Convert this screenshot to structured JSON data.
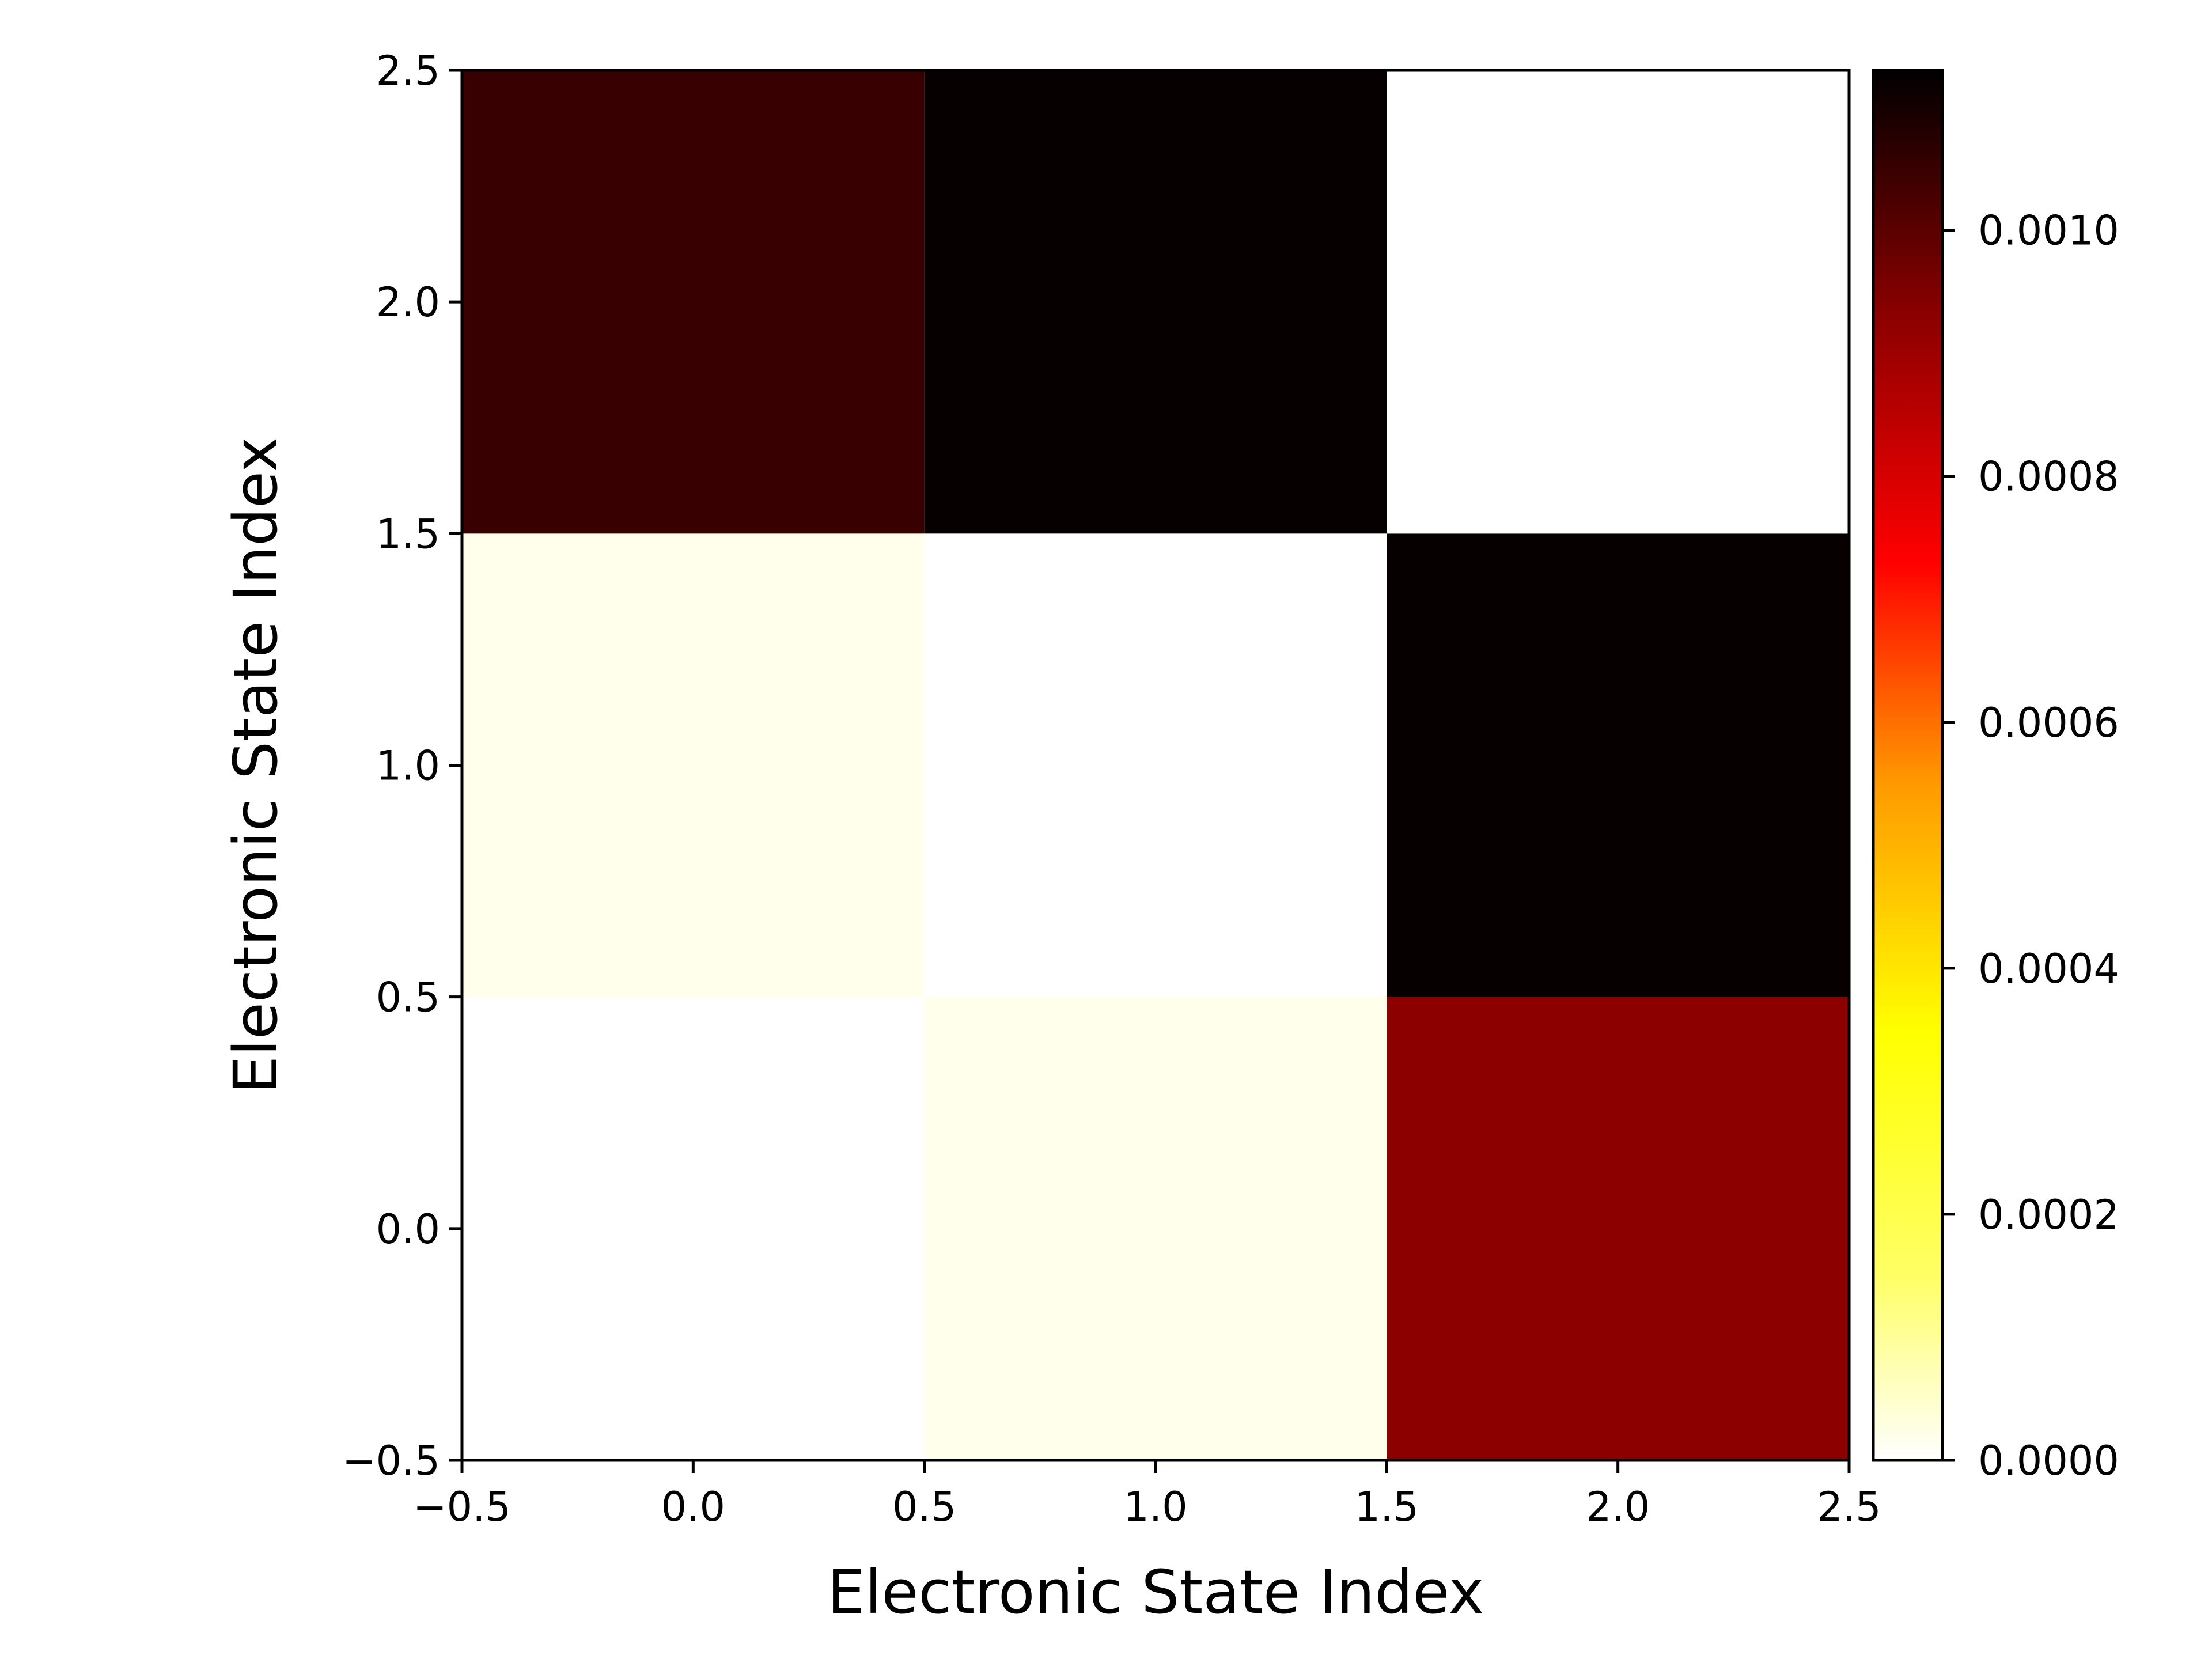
{
  "chart_data": {
    "type": "heatmap",
    "xlabel": "Electronic State Index",
    "ylabel": "Electronic State Index",
    "x_centers": [
      0,
      1,
      2
    ],
    "y_centers": [
      0,
      1,
      2
    ],
    "xlim": [
      -0.5,
      2.5
    ],
    "ylim": [
      -0.5,
      2.5
    ],
    "x_ticks": [
      -0.5,
      0.0,
      0.5,
      1.0,
      1.5,
      2.0,
      2.5
    ],
    "x_tick_labels": [
      "−0.5",
      "0.0",
      "0.5",
      "1.0",
      "1.5",
      "2.0",
      "2.5"
    ],
    "y_ticks": [
      -0.5,
      0.0,
      0.5,
      1.0,
      1.5,
      2.0,
      2.5
    ],
    "y_tick_labels": [
      "−0.5",
      "0.0",
      "0.5",
      "1.0",
      "1.5",
      "2.0",
      "2.5"
    ],
    "values": [
      [
        0.0,
        2e-05,
        0.00093
      ],
      [
        2e-05,
        0.0,
        0.00112
      ],
      [
        0.00105,
        0.00112,
        0.0
      ]
    ],
    "value_note_rows": "values[row][col], row = y index (0 at bottom), col = x index",
    "colormap": "hot_r",
    "colorbar": {
      "range": [
        0.0,
        0.00113
      ],
      "ticks": [
        0.0,
        0.0002,
        0.0004,
        0.0006,
        0.0008,
        0.001
      ],
      "tick_labels": [
        "0.0000",
        "0.0002",
        "0.0004",
        "0.0006",
        "0.0008",
        "0.0010"
      ],
      "stops": [
        {
          "v": 0.0,
          "color": "#ffffff"
        },
        {
          "v": 0.00015,
          "color": "#ffff66"
        },
        {
          "v": 0.00035,
          "color": "#ffff00"
        },
        {
          "v": 0.00055,
          "color": "#ff9a00"
        },
        {
          "v": 0.00073,
          "color": "#ff0000"
        },
        {
          "v": 0.00093,
          "color": "#8c0000"
        },
        {
          "v": 0.00113,
          "color": "#000000"
        }
      ]
    },
    "grid": false
  }
}
